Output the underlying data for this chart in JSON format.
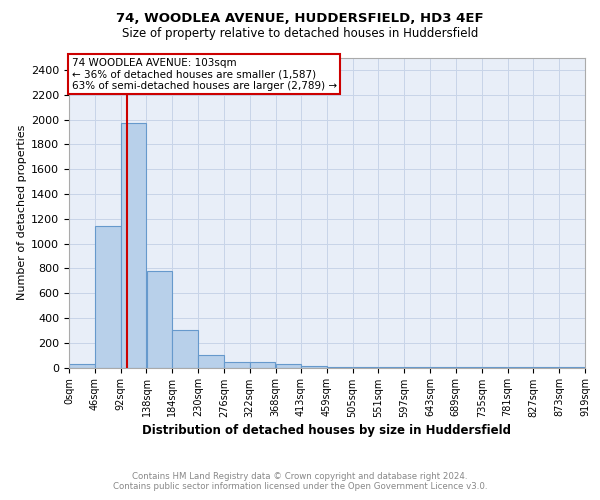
{
  "title": "74, WOODLEA AVENUE, HUDDERSFIELD, HD3 4EF",
  "subtitle": "Size of property relative to detached houses in Huddersfield",
  "xlabel": "Distribution of detached houses by size in Huddersfield",
  "ylabel": "Number of detached properties",
  "footer_line1": "Contains HM Land Registry data © Crown copyright and database right 2024.",
  "footer_line2": "Contains public sector information licensed under the Open Government Licence v3.0.",
  "bin_edges": [
    0,
    46,
    92,
    138,
    184,
    230,
    276,
    322,
    368,
    413,
    459,
    505,
    551,
    597,
    643,
    689,
    735,
    781,
    827,
    873,
    919
  ],
  "bar_heights": [
    30,
    1140,
    1970,
    780,
    300,
    100,
    45,
    45,
    30,
    15,
    8,
    5,
    3,
    2,
    2,
    1,
    1,
    1,
    1,
    1
  ],
  "bar_color": "#b8d0ea",
  "bar_edge_color": "#6699cc",
  "red_line_x": 103,
  "annotation_text_line1": "74 WOODLEA AVENUE: 103sqm",
  "annotation_text_line2": "← 36% of detached houses are smaller (1,587)",
  "annotation_text_line3": "63% of semi-detached houses are larger (2,789) →",
  "annotation_box_color": "#cc0000",
  "ylim": [
    0,
    2500
  ],
  "xlim": [
    0,
    919
  ],
  "yticks": [
    0,
    200,
    400,
    600,
    800,
    1000,
    1200,
    1400,
    1600,
    1800,
    2000,
    2200,
    2400
  ],
  "xtick_labels": [
    "0sqm",
    "46sqm",
    "92sqm",
    "138sqm",
    "184sqm",
    "230sqm",
    "276sqm",
    "322sqm",
    "368sqm",
    "413sqm",
    "459sqm",
    "505sqm",
    "551sqm",
    "597sqm",
    "643sqm",
    "689sqm",
    "735sqm",
    "781sqm",
    "827sqm",
    "873sqm",
    "919sqm"
  ],
  "grid_color": "#c8d4e8",
  "background_color": "#ffffff",
  "plot_bg_color": "#e8eef8"
}
